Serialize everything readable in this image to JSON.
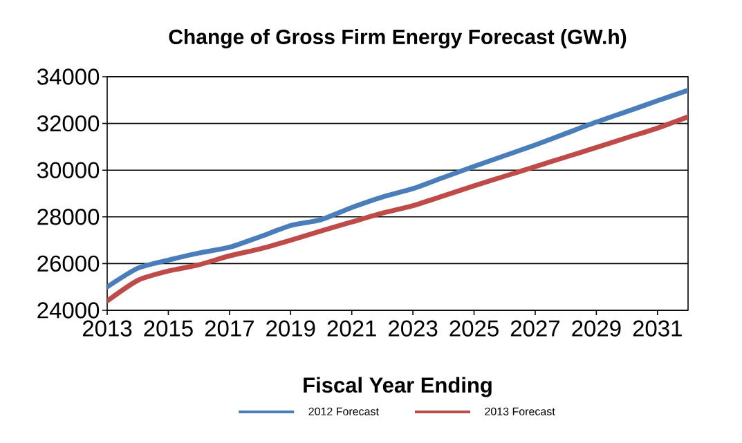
{
  "chart_data": {
    "type": "line",
    "title": "Change of Gross Firm Energy Forecast (GW.h)",
    "xlabel": "Fiscal Year Ending",
    "x": [
      2013,
      2014,
      2015,
      2016,
      2017,
      2018,
      2019,
      2020,
      2021,
      2022,
      2023,
      2024,
      2025,
      2026,
      2027,
      2028,
      2029,
      2030,
      2031,
      2032
    ],
    "series": [
      {
        "name": "2012  Forecast",
        "color": "#4a7ebb",
        "values": [
          25000,
          25800,
          26150,
          26450,
          26700,
          27150,
          27630,
          27880,
          28400,
          28850,
          29210,
          29690,
          30160,
          30620,
          31080,
          31570,
          32060,
          32510,
          32970,
          33420
        ]
      },
      {
        "name": "2013  Forecast",
        "color": "#be4b48",
        "values": [
          24400,
          25280,
          25680,
          25950,
          26330,
          26630,
          27000,
          27400,
          27780,
          28160,
          28480,
          28900,
          29330,
          29740,
          30150,
          30560,
          30970,
          31390,
          31800,
          32280
        ]
      }
    ],
    "xlim": [
      2013,
      2032
    ],
    "ylim": [
      24000,
      34000
    ],
    "xticks": [
      2013,
      2015,
      2017,
      2019,
      2021,
      2023,
      2025,
      2027,
      2029,
      2031
    ],
    "yticks": [
      24000,
      26000,
      28000,
      30000,
      32000,
      34000
    ],
    "grid": "y",
    "legend": "bottom",
    "marker": "none",
    "line_style": "solid"
  }
}
